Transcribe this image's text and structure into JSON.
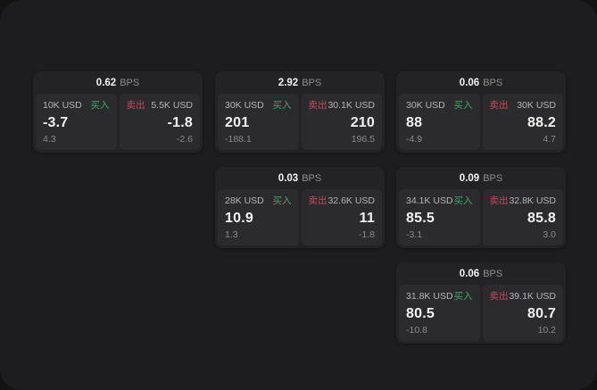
{
  "labels": {
    "bps_unit": "BPS",
    "buy": "买入",
    "sell": "卖出"
  },
  "colors": {
    "buy_green": "#3fa56c",
    "sell_red": "#c8485e",
    "surface": "#1d1d1f",
    "card": "#232325",
    "panel": "#2b2b2d"
  },
  "cards": [
    {
      "bps": "0.62",
      "buy": {
        "amount": "10K USD",
        "price": "-3.7",
        "delta": "4.3"
      },
      "sell": {
        "amount": "5.5K USD",
        "price": "-1.8",
        "delta": "-2.6"
      }
    },
    {
      "bps": "2.92",
      "buy": {
        "amount": "30K USD",
        "price": "201",
        "delta": "-188.1"
      },
      "sell": {
        "amount": "30.1K USD",
        "price": "210",
        "delta": "196.5"
      }
    },
    {
      "bps": "0.06",
      "buy": {
        "amount": "30K USD",
        "price": "88",
        "delta": "-4.9"
      },
      "sell": {
        "amount": "30K USD",
        "price": "88.2",
        "delta": "4.7"
      }
    },
    {
      "bps": "0.03",
      "buy": {
        "amount": "28K USD",
        "price": "10.9",
        "delta": "1.3"
      },
      "sell": {
        "amount": "32.6K USD",
        "price": "11",
        "delta": "-1.8"
      }
    },
    {
      "bps": "0.09",
      "buy": {
        "amount": "34.1K USD",
        "price": "85.5",
        "delta": "-3.1"
      },
      "sell": {
        "amount": "32.8K USD",
        "price": "85.8",
        "delta": "3.0"
      }
    },
    {
      "bps": "0.06",
      "buy": {
        "amount": "31.8K USD",
        "price": "80.5",
        "delta": "-10.8"
      },
      "sell": {
        "amount": "39.1K USD",
        "price": "80.7",
        "delta": "10.2"
      }
    }
  ]
}
